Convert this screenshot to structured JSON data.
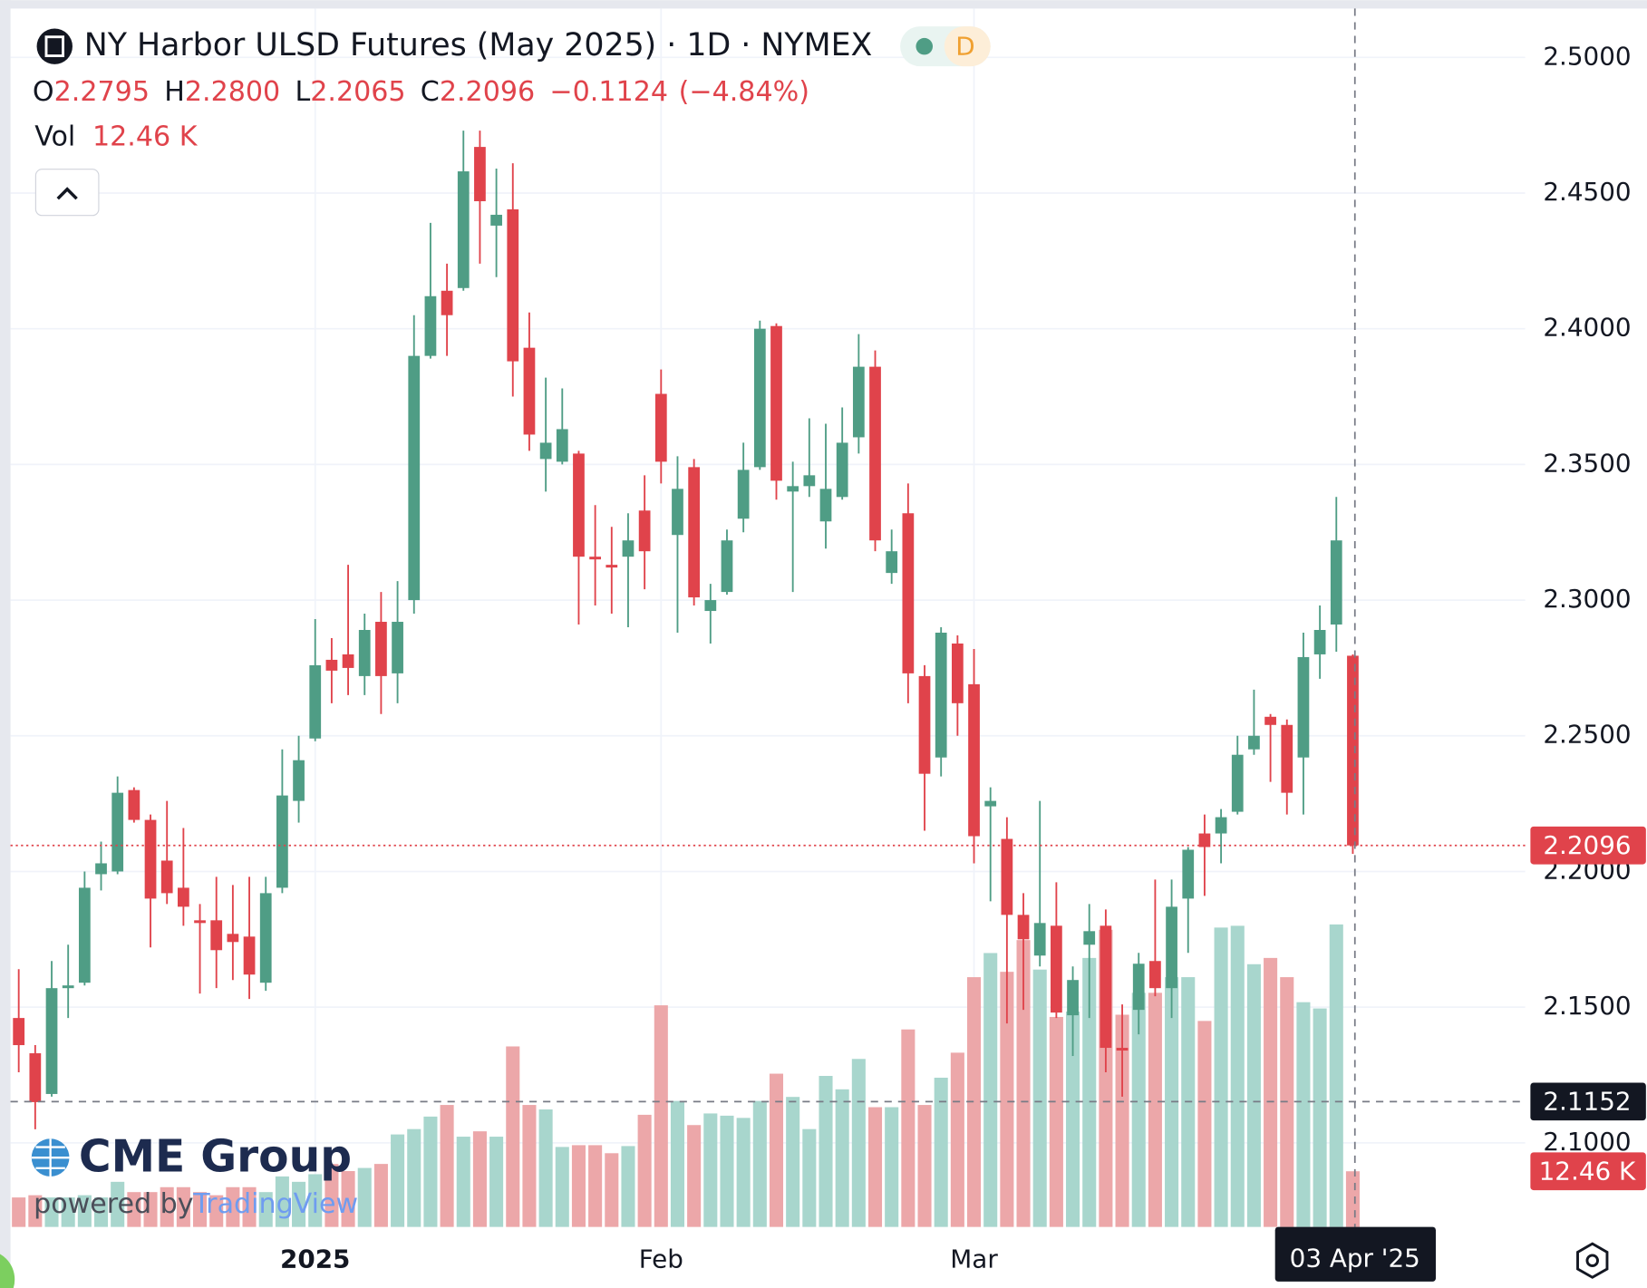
{
  "chart_data": {
    "type": "candlestick",
    "title": "NY Harbor ULSD Futures (May 2025) · 1D · NYMEX",
    "interval_badge": "D",
    "ohlc_legend": [
      {
        "key": "O",
        "text": "2.2795"
      },
      {
        "key": "H",
        "text": "2.2800"
      },
      {
        "key": "L",
        "text": "2.2065"
      },
      {
        "key": "C",
        "text": "2.2096"
      }
    ],
    "change_label": "−0.1124",
    "change_pct_label": "(−4.84%)",
    "volume_title": "Vol",
    "volume_value_label": "12.46 K",
    "watermark": {
      "brand": "CME Group",
      "powered_by": "powered by",
      "platform": "TradingView"
    },
    "categories": [
      null,
      null,
      null,
      null,
      null,
      null,
      null,
      null,
      null,
      null,
      null,
      null,
      null,
      null,
      null,
      null,
      null,
      null,
      "2025",
      null,
      null,
      null,
      null,
      null,
      null,
      null,
      null,
      null,
      null,
      null,
      null,
      null,
      null,
      null,
      null,
      null,
      null,
      null,
      null,
      "Feb",
      null,
      null,
      null,
      null,
      null,
      null,
      null,
      null,
      null,
      null,
      null,
      null,
      null,
      null,
      null,
      null,
      null,
      null,
      "Mar",
      null,
      null,
      null,
      null,
      null,
      null,
      null,
      null,
      null,
      null,
      null,
      null,
      null,
      null,
      null,
      null,
      null,
      null,
      null,
      null,
      null,
      null,
      "03 Apr '25"
    ],
    "open": [
      2.146,
      2.133,
      2.118,
      2.157,
      2.159,
      2.199,
      2.2,
      2.23,
      2.219,
      2.204,
      2.194,
      2.182,
      2.182,
      2.177,
      2.176,
      2.159,
      2.194,
      2.226,
      2.249,
      2.278,
      2.28,
      2.272,
      2.292,
      2.273,
      2.3,
      2.39,
      2.414,
      2.415,
      2.467,
      2.438,
      2.444,
      2.393,
      2.352,
      2.351,
      2.354,
      2.316,
      2.313,
      2.316,
      2.333,
      2.376,
      2.324,
      2.349,
      2.296,
      2.303,
      2.33,
      2.349,
      2.401,
      2.34,
      2.342,
      2.329,
      2.338,
      2.36,
      2.386,
      2.31,
      2.332,
      2.272,
      2.242,
      2.284,
      2.269,
      2.224,
      2.212,
      2.184,
      2.169,
      2.18,
      2.147,
      2.173,
      2.18,
      2.135,
      2.149,
      2.167,
      2.157,
      2.19,
      2.214,
      2.214,
      2.222,
      2.245,
      2.257,
      2.254,
      2.242,
      2.28,
      2.291,
      2.2795
    ],
    "high": [
      2.164,
      2.136,
      2.167,
      2.173,
      2.2,
      2.211,
      2.235,
      2.231,
      2.221,
      2.226,
      2.216,
      2.188,
      2.198,
      2.195,
      2.198,
      2.198,
      2.245,
      2.25,
      2.293,
      2.286,
      2.313,
      2.295,
      2.303,
      2.307,
      2.405,
      2.439,
      2.424,
      2.473,
      2.473,
      2.459,
      2.461,
      2.406,
      2.382,
      2.378,
      2.355,
      2.335,
      2.327,
      2.332,
      2.346,
      2.385,
      2.353,
      2.352,
      2.306,
      2.326,
      2.358,
      2.403,
      2.402,
      2.351,
      2.367,
      2.365,
      2.371,
      2.398,
      2.392,
      2.326,
      2.343,
      2.276,
      2.29,
      2.287,
      2.282,
      2.231,
      2.22,
      2.192,
      2.226,
      2.196,
      2.165,
      2.188,
      2.186,
      2.151,
      2.17,
      2.197,
      2.197,
      2.209,
      2.221,
      2.223,
      2.25,
      2.267,
      2.258,
      2.256,
      2.288,
      2.298,
      2.338,
      2.28
    ],
    "low": [
      2.126,
      2.105,
      2.117,
      2.146,
      2.158,
      2.193,
      2.199,
      2.218,
      2.172,
      2.188,
      2.18,
      2.155,
      2.157,
      2.16,
      2.153,
      2.156,
      2.192,
      2.218,
      2.248,
      2.262,
      2.265,
      2.265,
      2.258,
      2.262,
      2.295,
      2.389,
      2.39,
      2.414,
      2.424,
      2.419,
      2.375,
      2.355,
      2.34,
      2.35,
      2.291,
      2.298,
      2.295,
      2.29,
      2.304,
      2.343,
      2.288,
      2.298,
      2.284,
      2.302,
      2.325,
      2.348,
      2.337,
      2.303,
      2.338,
      2.319,
      2.337,
      2.354,
      2.318,
      2.306,
      2.262,
      2.215,
      2.235,
      2.25,
      2.203,
      2.189,
      2.144,
      2.149,
      2.165,
      2.146,
      2.132,
      2.146,
      2.126,
      2.117,
      2.14,
      2.154,
      2.146,
      2.17,
      2.191,
      2.203,
      2.221,
      2.243,
      2.233,
      2.221,
      2.221,
      2.271,
      2.281,
      2.2065
    ],
    "close": [
      2.136,
      2.115,
      2.157,
      2.158,
      2.194,
      2.203,
      2.229,
      2.219,
      2.19,
      2.192,
      2.187,
      2.181,
      2.171,
      2.174,
      2.162,
      2.192,
      2.228,
      2.241,
      2.276,
      2.274,
      2.275,
      2.289,
      2.272,
      2.292,
      2.39,
      2.412,
      2.405,
      2.458,
      2.447,
      2.442,
      2.388,
      2.361,
      2.358,
      2.363,
      2.316,
      2.315,
      2.312,
      2.322,
      2.318,
      2.351,
      2.341,
      2.301,
      2.3,
      2.322,
      2.348,
      2.4,
      2.344,
      2.342,
      2.346,
      2.341,
      2.358,
      2.386,
      2.322,
      2.318,
      2.273,
      2.236,
      2.288,
      2.262,
      2.213,
      2.226,
      2.184,
      2.175,
      2.181,
      2.148,
      2.16,
      2.178,
      2.135,
      2.134,
      2.166,
      2.157,
      2.187,
      2.208,
      2.209,
      2.22,
      2.243,
      2.25,
      2.254,
      2.229,
      2.279,
      2.289,
      2.322,
      2.2096
    ],
    "volume": [
      6.6,
      7.1,
      6.6,
      6.6,
      7.1,
      6.6,
      10.1,
      7.8,
      7.8,
      8.9,
      8.9,
      7.8,
      7.1,
      8.9,
      8.9,
      7.8,
      11.3,
      10.1,
      11.8,
      14.1,
      12.5,
      13.2,
      14.1,
      20.7,
      21.9,
      24.7,
      27.3,
      20.2,
      21.4,
      20.2,
      40.4,
      27.3,
      26.3,
      17.9,
      18.3,
      18.3,
      16.5,
      18.1,
      25.1,
      49.6,
      28.2,
      22.8,
      25.4,
      24.9,
      24.4,
      28.2,
      34.3,
      29.1,
      21.9,
      33.8,
      30.8,
      37.6,
      26.8,
      26.8,
      44.2,
      27.3,
      33.4,
      39.0,
      55.9,
      61.3,
      57.1,
      64.2,
      57.6,
      47.0,
      48.2,
      60.2,
      66.5,
      47.5,
      52.4,
      52.4,
      55.9,
      55.9,
      46.1,
      67.0,
      67.4,
      58.8,
      60.2,
      55.9,
      50.3,
      48.9,
      67.7,
      12.46
    ],
    "up_color": "#4f9d85",
    "down_color": "#e0434b",
    "volume_up_color": "#a8d6cd",
    "volume_down_color": "#eca7a9",
    "ylim": [
      2.069,
      2.518
    ],
    "yticks": [
      {
        "value": 2.1,
        "label": "2.1000"
      },
      {
        "value": 2.15,
        "label": "2.1500"
      },
      {
        "value": 2.2,
        "label": "2.2000"
      },
      {
        "value": 2.25,
        "label": "2.2500"
      },
      {
        "value": 2.3,
        "label": "2.3000"
      },
      {
        "value": 2.35,
        "label": "2.3500"
      },
      {
        "value": 2.4,
        "label": "2.4000"
      },
      {
        "value": 2.45,
        "label": "2.4500"
      },
      {
        "value": 2.5,
        "label": "2.5000"
      }
    ],
    "grid": true,
    "crosshair": {
      "price": 2.1152
    }
  }
}
